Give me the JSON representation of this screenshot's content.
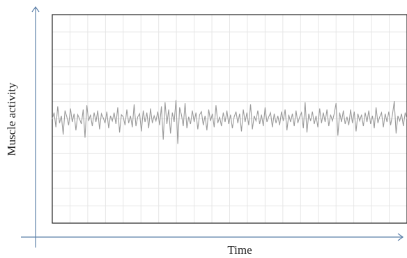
{
  "chart_data": {
    "type": "line",
    "xlabel": "Time",
    "ylabel": "Muscle activity",
    "grid": true,
    "xlim": [
      0,
      100
    ],
    "ylim": [
      -10,
      10
    ],
    "series": [
      {
        "values": [
          0.0,
          0.6,
          -0.8,
          1.2,
          -0.4,
          0.3,
          -1.5,
          0.8,
          0.2,
          -0.6,
          1.0,
          -0.3,
          0.5,
          -1.1,
          0.4,
          0.0,
          -0.5,
          0.9,
          -1.8,
          1.3,
          -0.2,
          0.4,
          -0.7,
          0.6,
          -0.3,
          0.8,
          -1.0,
          0.5,
          0.1,
          -0.4,
          0.7,
          -0.9,
          0.3,
          -0.2,
          0.6,
          -0.5,
          1.1,
          -1.3,
          0.4,
          0.2,
          -0.6,
          0.9,
          -0.4,
          0.3,
          -0.8,
          1.4,
          -0.7,
          0.2,
          0.5,
          -1.2,
          0.8,
          -0.3,
          0.6,
          -0.9,
          1.0,
          -0.4,
          0.3,
          -0.2,
          0.7,
          -0.6,
          1.2,
          -2.0,
          1.6,
          -0.5,
          0.9,
          -1.4,
          0.6,
          -0.3,
          1.8,
          -2.4,
          1.1,
          0.4,
          -0.7,
          1.5,
          -0.9,
          0.2,
          -0.5,
          0.8,
          -0.3,
          0.6,
          -1.0,
          0.4,
          0.7,
          -0.6,
          0.3,
          -1.1,
          0.9,
          -0.2,
          0.5,
          -0.8,
          1.3,
          -0.4,
          0.2,
          -0.7,
          0.6,
          -0.3,
          0.8,
          -0.5,
          0.4,
          -0.9,
          0.2,
          0.7,
          -0.4,
          0.5,
          -1.2,
          0.9,
          -0.3,
          0.6,
          -0.6,
          1.4,
          -1.0,
          0.3,
          -0.2,
          0.8,
          -0.5,
          0.4,
          -0.7,
          1.1,
          -0.3,
          0.2,
          0.6,
          -0.8,
          0.5,
          -0.4,
          0.3,
          -0.6,
          0.7,
          -0.2,
          0.9,
          -1.1,
          0.4,
          -0.3,
          0.5,
          -0.7,
          0.8,
          -0.4,
          0.2,
          0.6,
          -0.9,
          1.6,
          -1.3,
          0.5,
          -0.2,
          0.7,
          -0.5,
          0.3,
          -0.8,
          1.0,
          -0.4,
          0.6,
          -0.3,
          0.9,
          -0.7,
          0.4,
          -0.2,
          0.5,
          1.5,
          -1.6,
          0.6,
          -0.3,
          0.8,
          -0.5,
          0.2,
          -0.6,
          0.9,
          -0.4,
          0.7,
          -1.2,
          0.5,
          -0.2,
          0.4,
          -0.7,
          0.6,
          -0.3,
          0.8,
          -0.5,
          0.3,
          -0.9,
          1.1,
          -0.4,
          0.2,
          0.6,
          -0.8,
          0.5,
          -0.3,
          0.7,
          -0.6,
          0.4,
          1.7,
          -1.4,
          0.3,
          -0.2,
          0.5,
          -0.7,
          0.6,
          0.0
        ]
      }
    ]
  },
  "colors": {
    "axis": "#5b7fa8",
    "frame": "#222222",
    "grid": "#e6e6e6",
    "signal": "#9a9a9a"
  }
}
